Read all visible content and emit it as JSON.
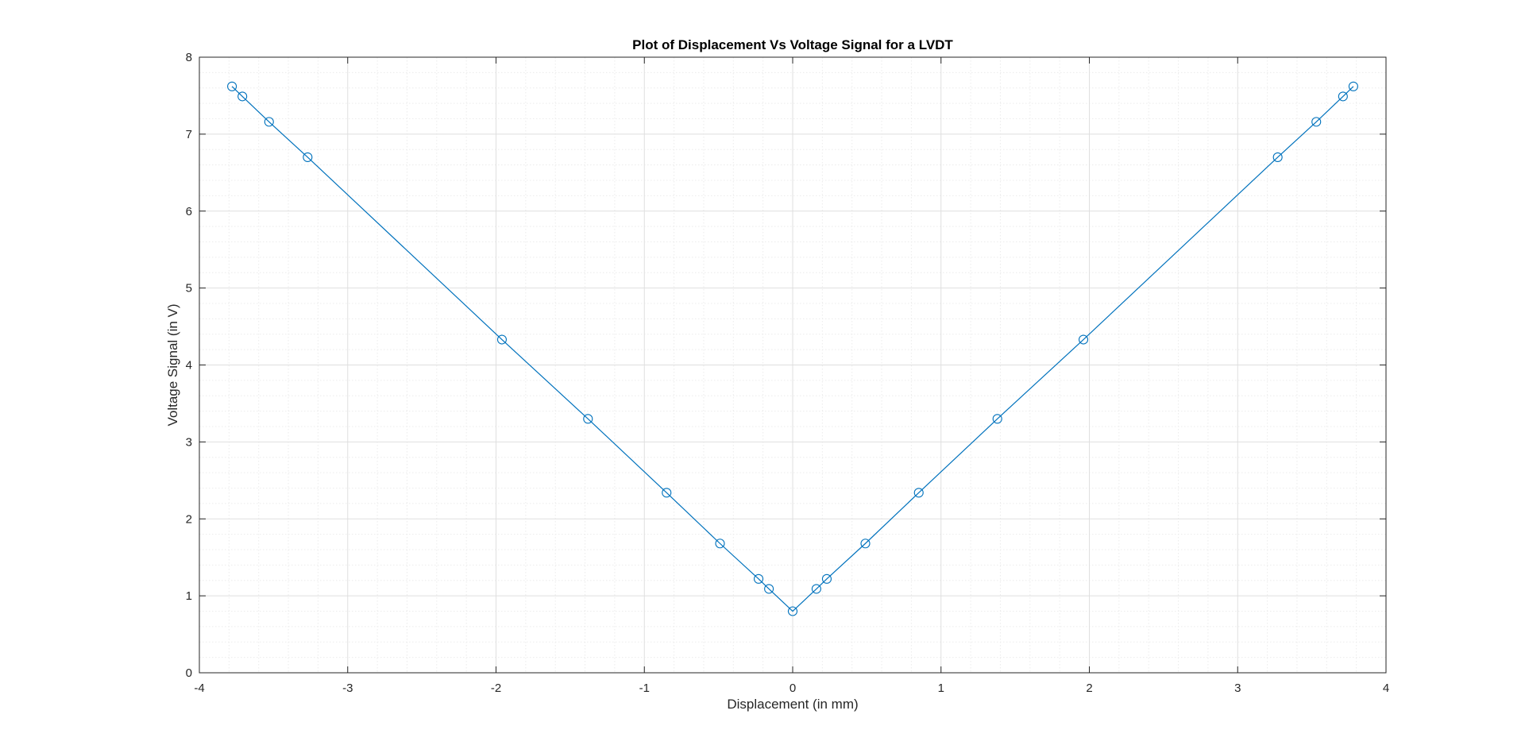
{
  "chart_data": {
    "type": "line",
    "title": "Plot of Displacement Vs Voltage Signal for a LVDT",
    "xlabel": "Displacement (in mm)",
    "ylabel": "Voltage Signal (in V)",
    "xlim": [
      -4,
      4
    ],
    "ylim": [
      0,
      8
    ],
    "xticks": [
      -4,
      -3,
      -2,
      -1,
      0,
      1,
      2,
      3,
      4
    ],
    "yticks": [
      0,
      1,
      2,
      3,
      4,
      5,
      6,
      7,
      8
    ],
    "grid": true,
    "minor_grid": true,
    "marker": "circle",
    "series": [
      {
        "color": "#0072BD",
        "x": [
          -3.78,
          -3.71,
          -3.53,
          -3.27,
          -1.96,
          -1.38,
          -0.85,
          -0.49,
          -0.23,
          -0.16,
          0,
          0.16,
          0.23,
          0.49,
          0.85,
          1.38,
          1.96,
          3.27,
          3.53,
          3.71,
          3.78
        ],
        "y": [
          7.62,
          7.49,
          7.16,
          6.7,
          4.33,
          3.3,
          2.34,
          1.68,
          1.22,
          1.09,
          0.8,
          1.09,
          1.22,
          1.68,
          2.34,
          3.3,
          4.33,
          6.7,
          7.16,
          7.49,
          7.62
        ]
      }
    ]
  },
  "colors": {
    "grid_major": "#dfdfdf",
    "grid_minor": "#ececec",
    "axes": "#262626",
    "series": "#0072BD"
  }
}
